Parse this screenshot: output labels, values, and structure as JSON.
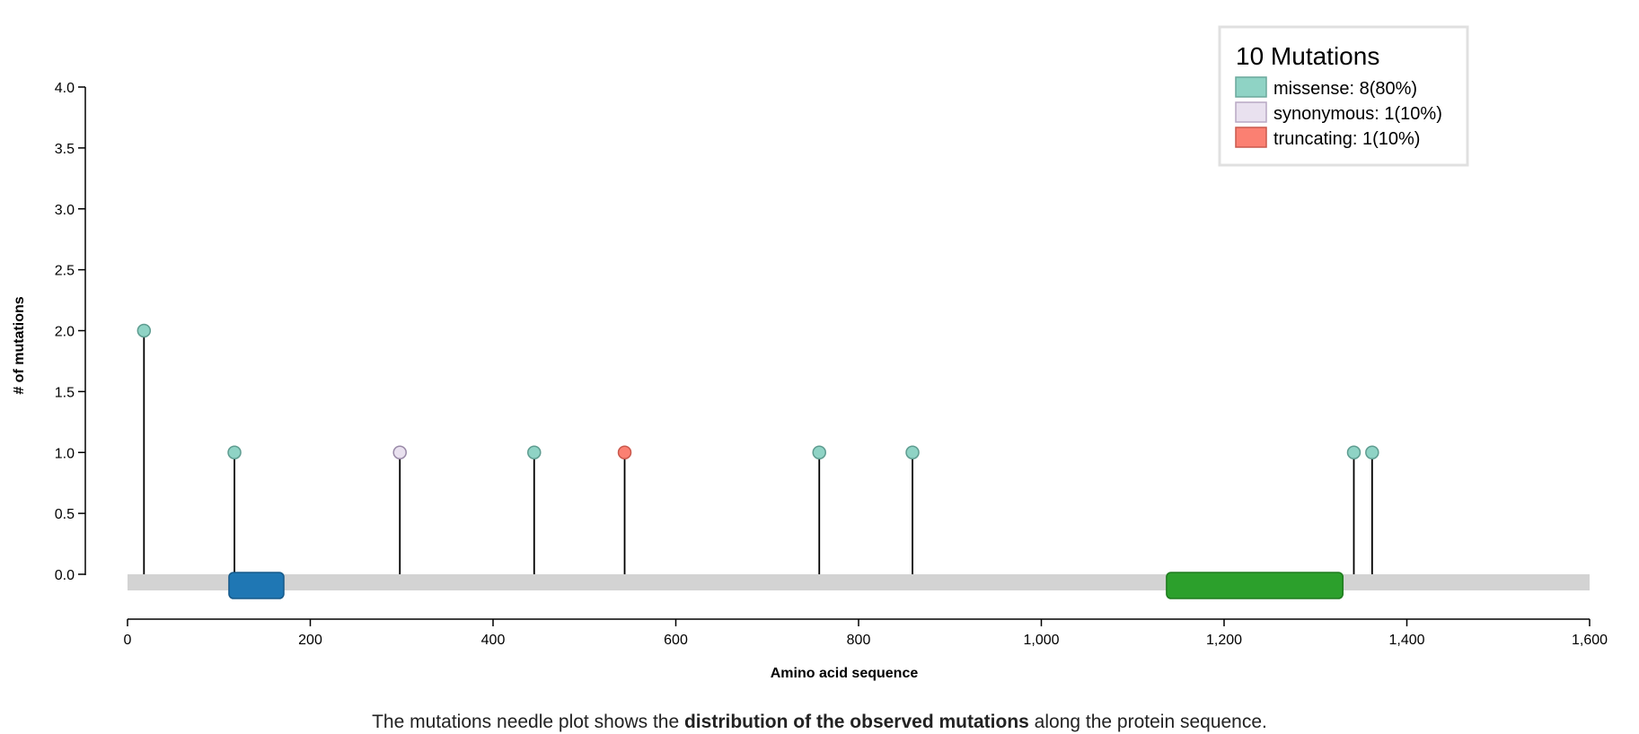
{
  "chart_data": {
    "type": "lollipop",
    "xlabel": "Amino acid sequence",
    "ylabel": "# of mutations",
    "xlim": [
      0,
      1600
    ],
    "ylim": [
      0,
      4
    ],
    "x_ticks": [
      0,
      200,
      400,
      600,
      800,
      1000,
      1200,
      1400,
      1600
    ],
    "x_tick_labels": [
      "0",
      "200",
      "400",
      "600",
      "800",
      "1,000",
      "1,200",
      "1,400",
      "1,600"
    ],
    "y_ticks": [
      0,
      0.5,
      1,
      1.5,
      2,
      2.5,
      3,
      3.5,
      4
    ],
    "y_tick_labels": [
      "0.0",
      "0.5",
      "1.0",
      "1.5",
      "2.0",
      "2.5",
      "3.0",
      "3.5",
      "4.0"
    ],
    "protein_length": 1600,
    "domains": [
      {
        "start": 111,
        "end": 171,
        "color": "#1f77b4"
      },
      {
        "start": 1137,
        "end": 1330,
        "color": "#2ca02c"
      }
    ],
    "mutations": [
      {
        "x": 18,
        "y": 2,
        "type": "missense"
      },
      {
        "x": 117,
        "y": 1,
        "type": "missense"
      },
      {
        "x": 298,
        "y": 1,
        "type": "synonymous"
      },
      {
        "x": 445,
        "y": 1,
        "type": "missense"
      },
      {
        "x": 544,
        "y": 1,
        "type": "truncating"
      },
      {
        "x": 757,
        "y": 1,
        "type": "missense"
      },
      {
        "x": 859,
        "y": 1,
        "type": "missense"
      },
      {
        "x": 1342,
        "y": 1,
        "type": "missense"
      },
      {
        "x": 1362,
        "y": 1,
        "type": "missense"
      }
    ],
    "legend": {
      "title": "10 Mutations",
      "position": "top-right",
      "entries": [
        {
          "type": "missense",
          "label": "missense: 8(80%)",
          "color": "#8fd3c5"
        },
        {
          "type": "synonymous",
          "label": "synonymous: 1(10%)",
          "color": "#e9e1ef"
        },
        {
          "type": "truncating",
          "label": "truncating: 1(10%)",
          "color": "#fb8072"
        }
      ]
    },
    "colors": {
      "missense": "#8fd3c5",
      "synonymous": "#e9e1ef",
      "truncating": "#fb8072",
      "backbone": "#d3d3d3"
    }
  },
  "caption": {
    "before": "The mutations needle plot shows the ",
    "bold": "distribution of the observed mutations",
    "after": " along the protein sequence."
  }
}
